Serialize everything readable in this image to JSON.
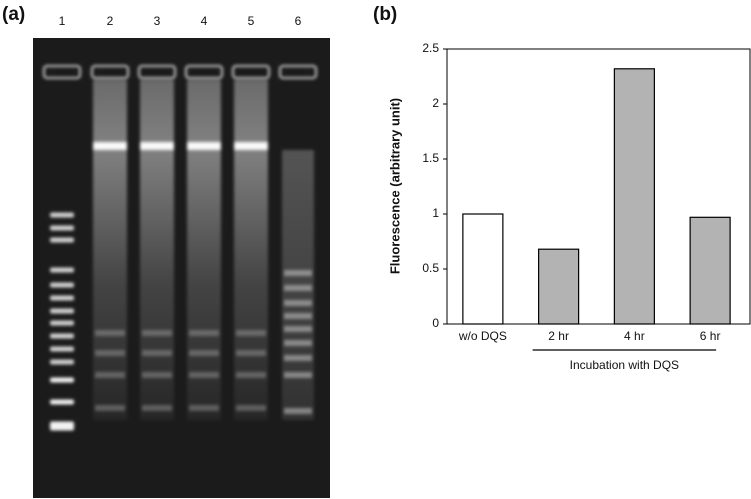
{
  "gel": {
    "label": "(a)",
    "lanes": [
      "1",
      "2",
      "3",
      "4",
      "5",
      "6"
    ]
  },
  "chart_data": {
    "type": "bar",
    "label": "(b)",
    "ylabel": "Fluorescence (arbitrary unit)",
    "categories": [
      "w/o DQS",
      "2 hr",
      "4 hr",
      "6 hr"
    ],
    "values": [
      1.0,
      0.68,
      2.32,
      0.97
    ],
    "colors": [
      "#ffffff",
      "#b3b3b3",
      "#b3b3b3",
      "#b3b3b3"
    ],
    "ylim": [
      0,
      2.5
    ],
    "yticks": [
      0,
      0.5,
      1,
      1.5,
      2,
      2.5
    ],
    "group_label": "Incubation with DQS"
  }
}
